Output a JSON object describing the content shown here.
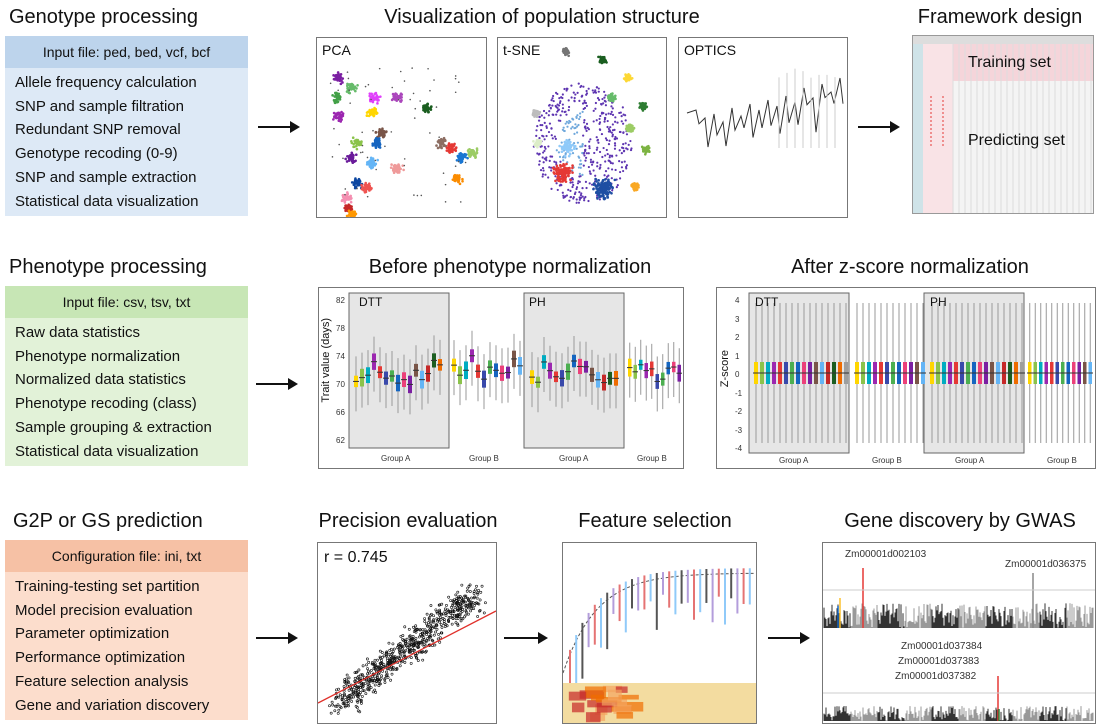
{
  "genotype": {
    "title": "Genotype processing",
    "header": "Input file: ped, bed, vcf, bcf",
    "items": [
      "Allele frequency calculation",
      "SNP and sample filtration",
      "Redundant SNP removal",
      "Genotype recoding (0-9)",
      "SNP and sample extraction",
      "Statistical data visualization"
    ]
  },
  "phenotype": {
    "title": "Phenotype processing",
    "header": "Input file: csv, tsv, txt",
    "items": [
      "Raw data statistics",
      "Phenotype normalization",
      "Normalized data statistics",
      "Phenotype recoding (class)",
      "Sample grouping & extraction",
      "Statistical data visualization"
    ]
  },
  "prediction": {
    "title": "G2P or GS prediction",
    "header": "Configuration file: ini, txt",
    "items": [
      "Training-testing set partition",
      "Model precision evaluation",
      "Parameter optimization",
      "Performance optimization",
      "Feature selection analysis",
      "Gene and variation discovery"
    ]
  },
  "visualization": {
    "title": "Visualization of population structure",
    "panels": [
      "PCA",
      "t-SNE",
      "OPTICS"
    ]
  },
  "framework": {
    "title": "Framework design",
    "training": "Training set",
    "predicting": "Predicting set"
  },
  "before": {
    "title": "Before phenotype normalization",
    "ylabel": "Trait value (days)",
    "yticks": [
      "82",
      "78",
      "74",
      "70",
      "66",
      "62"
    ],
    "traits": [
      "DTT",
      "PH"
    ],
    "groups": [
      "Group A",
      "Group B",
      "Group A",
      "Group B"
    ]
  },
  "after": {
    "title": "After z-score normalization",
    "ylabel": "Z-score",
    "yticks": [
      "4",
      "3",
      "2",
      "1",
      "0",
      "-1",
      "-2",
      "-3",
      "-4"
    ],
    "traits": [
      "DTT",
      "PH"
    ],
    "groups": [
      "Group A",
      "Group B",
      "Group A",
      "Group B"
    ]
  },
  "precision": {
    "title": "Precision evaluation",
    "r_label": "r = 0.745"
  },
  "feature": {
    "title": "Feature selection"
  },
  "gwas": {
    "title": "Gene discovery by GWAS",
    "genes_top": [
      "Zm00001d002103",
      "Zm00001d036375"
    ],
    "genes_bottom": [
      "Zm00001d037384",
      "Zm00001d037383",
      "Zm00001d037382"
    ]
  },
  "colors": {
    "blue": "#bdd4ec",
    "green": "#c7e6b5",
    "orange": "#f6c1a5",
    "fit_line": "#e0302a"
  }
}
